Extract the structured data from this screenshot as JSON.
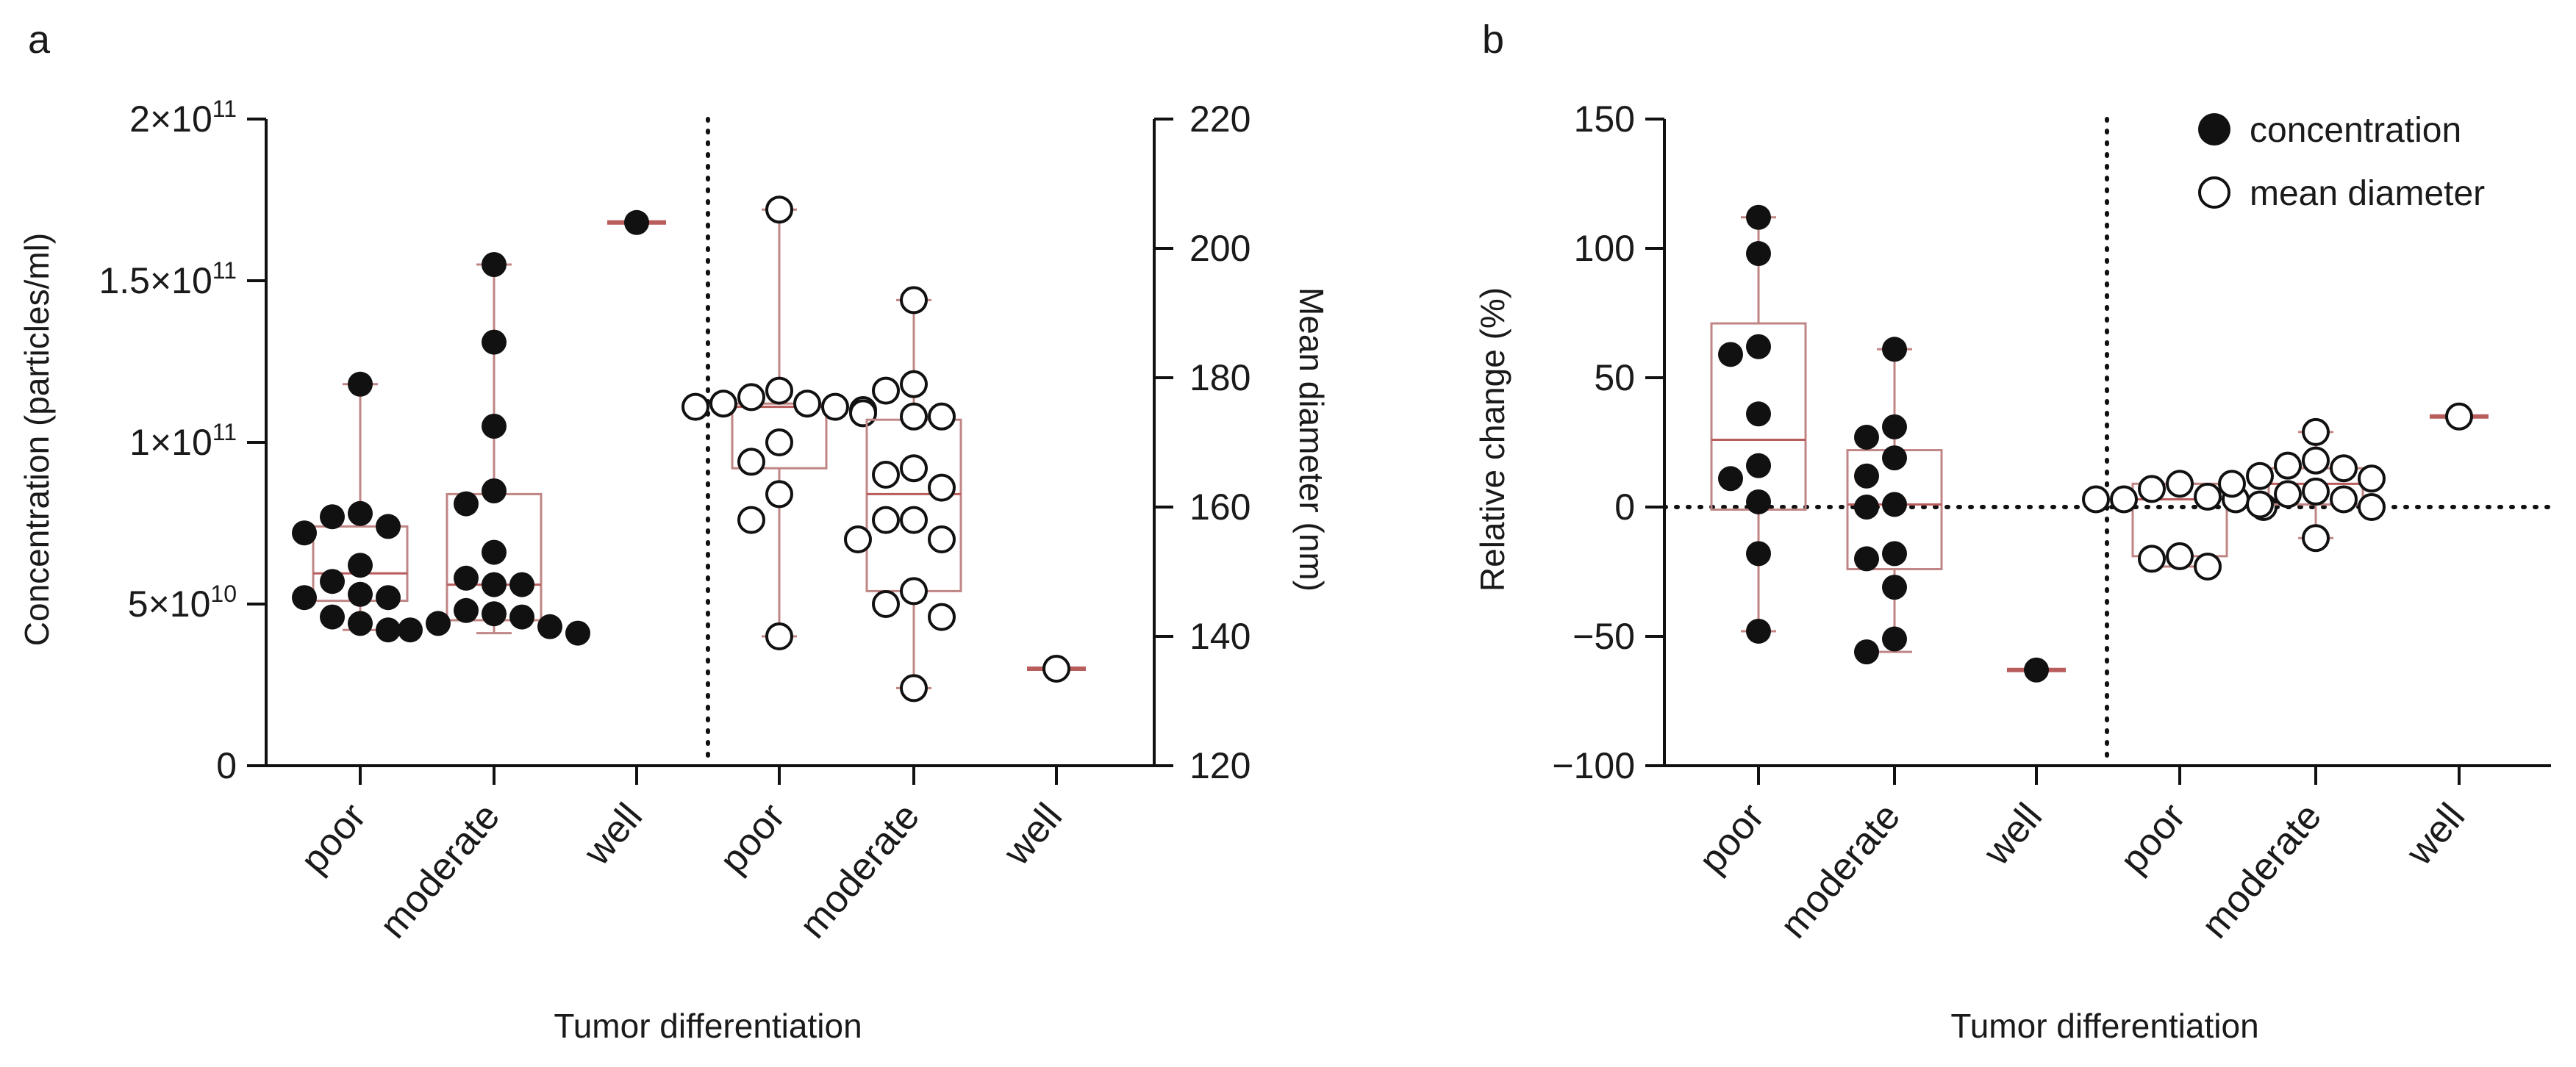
{
  "panels": [
    {
      "label": "a",
      "xlabel": "Tumor differentiation",
      "categories": [
        "poor",
        "moderate",
        "well",
        "poor",
        "moderate",
        "well"
      ],
      "left_axis": {
        "label": "Concentration (particles/ml)",
        "ylim": [
          0,
          200000000000
        ],
        "ticks": [
          {
            "value": 0,
            "base": "0",
            "exp": ""
          },
          {
            "value": 50000000000,
            "base": "5×10",
            "exp": "10"
          },
          {
            "value": 100000000000,
            "base": "1×10",
            "exp": "11"
          },
          {
            "value": 150000000000,
            "base": "1.5×10",
            "exp": "11"
          },
          {
            "value": 200000000000,
            "base": "2×10",
            "exp": "11"
          }
        ]
      },
      "right_axis": {
        "label": "Mean diameter (nm)",
        "ylim": [
          120,
          220
        ],
        "ticks": [
          "120",
          "140",
          "160",
          "180",
          "200",
          "220"
        ]
      }
    },
    {
      "label": "b",
      "xlabel": "Tumor differentiation",
      "ylabel": "Relative change (%)",
      "categories": [
        "poor",
        "moderate",
        "well",
        "poor",
        "moderate",
        "well"
      ],
      "ylim": [
        -100,
        150
      ],
      "ticks": [
        "−100",
        "−50",
        "0",
        "50",
        "100",
        "150"
      ]
    }
  ],
  "legend": {
    "items": [
      {
        "label": "concentration",
        "marker": "filled-circle"
      },
      {
        "label": "mean diameter",
        "marker": "open-circle"
      }
    ],
    "position": "top-right of panel b"
  },
  "colors": {
    "box": "#c08585",
    "median": "#b85c5c",
    "point": "#111111",
    "open_point_fill": "#ffffff",
    "axis": "#111111"
  },
  "chart_data": [
    {
      "type": "box-scatter",
      "panel": "a",
      "groups": [
        {
          "name": "concentration",
          "axis": "left",
          "marker": "filled",
          "category_indices": [
            0,
            1,
            2
          ],
          "box": [
            {
              "min": 42000000000,
              "q1": 51000000000,
              "median": 59500000000,
              "q3": 74000000000,
              "max": 118000000000
            },
            {
              "min": 41000000000,
              "q1": 45000000000,
              "median": 56000000000,
              "q3": 84000000000,
              "max": 155000000000
            },
            {
              "min": 168000000000,
              "q1": 168000000000,
              "median": 168000000000,
              "q3": 168000000000,
              "max": 168000000000
            }
          ],
          "values": [
            [
              118000000000,
              78000000000,
              77000000000,
              74000000000,
              72000000000,
              62000000000,
              57000000000,
              53000000000,
              52000000000,
              52000000000,
              46000000000,
              44000000000,
              42000000000
            ],
            [
              155000000000,
              131000000000,
              105000000000,
              85000000000,
              81000000000,
              66000000000,
              58000000000,
              56000000000,
              56000000000,
              48000000000,
              47000000000,
              46000000000,
              44000000000,
              43000000000,
              42000000000,
              41000000000
            ],
            [
              168000000000
            ]
          ]
        },
        {
          "name": "mean diameter",
          "axis": "right",
          "marker": "open",
          "category_indices": [
            3,
            4,
            5
          ],
          "box": [
            {
              "min": 140,
              "q1": 166,
              "median": 175.5,
              "q3": 176,
              "max": 206
            },
            {
              "min": 132,
              "q1": 147,
              "median": 162,
              "q3": 173.5,
              "max": 192
            },
            {
              "min": 135,
              "q1": 135,
              "median": 135,
              "q3": 135,
              "max": 135
            }
          ],
          "values": [
            [
              206,
              178,
              177,
              176,
              176,
              175.5,
              175.5,
              175,
              174.5,
              170,
              167,
              162,
              158,
              140
            ],
            [
              192,
              179,
              178,
              174,
              174,
              166,
              165,
              163,
              158,
              158,
              155,
              155,
              147,
              145,
              143,
              132
            ],
            [
              135
            ]
          ]
        }
      ]
    },
    {
      "type": "box-scatter",
      "panel": "b",
      "reference_line": 0,
      "groups": [
        {
          "name": "concentration",
          "marker": "filled",
          "category_indices": [
            0,
            1,
            2
          ],
          "box": [
            {
              "min": -48,
              "q1": -1,
              "median": 26,
              "q3": 71,
              "max": 112
            },
            {
              "min": -56,
              "q1": -24,
              "median": 1,
              "q3": 22,
              "max": 61
            },
            {
              "min": -63,
              "q1": -63,
              "median": -63,
              "q3": -63,
              "max": -63
            }
          ],
          "values": [
            [
              112,
              98,
              62,
              59,
              36,
              16,
              11,
              2,
              -18,
              -48
            ],
            [
              61,
              31,
              27,
              19,
              12,
              1,
              0,
              -18,
              -20,
              -31,
              -51,
              -56
            ],
            [
              -63
            ]
          ]
        },
        {
          "name": "mean diameter",
          "marker": "open",
          "category_indices": [
            3,
            4,
            5
          ],
          "box": [
            {
              "min": -23,
              "q1": -19,
              "median": 3,
              "q3": 9,
              "max": 9
            },
            {
              "min": -12,
              "q1": 1,
              "median": 9,
              "q3": 15,
              "max": 29
            },
            {
              "min": 35,
              "q1": 35,
              "median": 35,
              "q3": 35,
              "max": 35
            }
          ],
          "values": [
            [
              9,
              7,
              4,
              3,
              3,
              3,
              0,
              -19,
              -20,
              -23
            ],
            [
              29,
              18,
              16,
              15,
              12,
              11,
              9,
              6,
              5,
              3,
              1,
              0,
              -12
            ],
            [
              35
            ]
          ]
        }
      ]
    }
  ]
}
